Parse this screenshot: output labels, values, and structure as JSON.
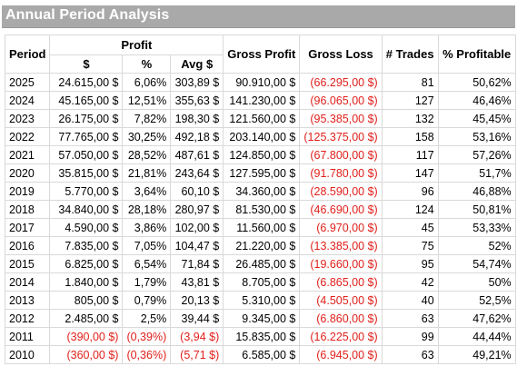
{
  "title": "Annual Period Analysis",
  "headers": {
    "period": "Period",
    "profit_group": "Profit",
    "profit_usd": "$",
    "profit_pct": "%",
    "profit_avg": "Avg $",
    "gross_profit": "Gross Profit",
    "gross_loss": "Gross Loss",
    "trades": "# Trades",
    "profitable": "% Profitable"
  },
  "colors": {
    "negative": "#e0201b",
    "title_bg": "#a9a9a9"
  },
  "rows": [
    {
      "period": "2025",
      "profit": "24.615,00 $",
      "pct": "6,06%",
      "avg": "303,89 $",
      "gross_profit": "90.910,00 $",
      "gross_loss": "(66.295,00 $)",
      "trades": "81",
      "profitable": "50,62%",
      "neg": false
    },
    {
      "period": "2024",
      "profit": "45.165,00 $",
      "pct": "12,51%",
      "avg": "355,63 $",
      "gross_profit": "141.230,00 $",
      "gross_loss": "(96.065,00 $)",
      "trades": "127",
      "profitable": "46,46%",
      "neg": false
    },
    {
      "period": "2023",
      "profit": "26.175,00 $",
      "pct": "7,82%",
      "avg": "198,30 $",
      "gross_profit": "121.560,00 $",
      "gross_loss": "(95.385,00 $)",
      "trades": "132",
      "profitable": "45,45%",
      "neg": false
    },
    {
      "period": "2022",
      "profit": "77.765,00 $",
      "pct": "30,25%",
      "avg": "492,18 $",
      "gross_profit": "203.140,00 $",
      "gross_loss": "(125.375,00 $)",
      "trades": "158",
      "profitable": "53,16%",
      "neg": false
    },
    {
      "period": "2021",
      "profit": "57.050,00 $",
      "pct": "28,52%",
      "avg": "487,61 $",
      "gross_profit": "124.850,00 $",
      "gross_loss": "(67.800,00 $)",
      "trades": "117",
      "profitable": "57,26%",
      "neg": false
    },
    {
      "period": "2020",
      "profit": "35.815,00 $",
      "pct": "21,81%",
      "avg": "243,64 $",
      "gross_profit": "127.595,00 $",
      "gross_loss": "(91.780,00 $)",
      "trades": "147",
      "profitable": "51,7%",
      "neg": false
    },
    {
      "period": "2019",
      "profit": "5.770,00 $",
      "pct": "3,64%",
      "avg": "60,10 $",
      "gross_profit": "34.360,00 $",
      "gross_loss": "(28.590,00 $)",
      "trades": "96",
      "profitable": "46,88%",
      "neg": false
    },
    {
      "period": "2018",
      "profit": "34.840,00 $",
      "pct": "28,18%",
      "avg": "280,97 $",
      "gross_profit": "81.530,00 $",
      "gross_loss": "(46.690,00 $)",
      "trades": "124",
      "profitable": "50,81%",
      "neg": false
    },
    {
      "period": "2017",
      "profit": "4.590,00 $",
      "pct": "3,86%",
      "avg": "102,00 $",
      "gross_profit": "11.560,00 $",
      "gross_loss": "(6.970,00 $)",
      "trades": "45",
      "profitable": "53,33%",
      "neg": false
    },
    {
      "period": "2016",
      "profit": "7.835,00 $",
      "pct": "7,05%",
      "avg": "104,47 $",
      "gross_profit": "21.220,00 $",
      "gross_loss": "(13.385,00 $)",
      "trades": "75",
      "profitable": "52%",
      "neg": false
    },
    {
      "period": "2015",
      "profit": "6.825,00 $",
      "pct": "6,54%",
      "avg": "71,84 $",
      "gross_profit": "26.485,00 $",
      "gross_loss": "(19.660,00 $)",
      "trades": "95",
      "profitable": "54,74%",
      "neg": false
    },
    {
      "period": "2014",
      "profit": "1.840,00 $",
      "pct": "1,79%",
      "avg": "43,81 $",
      "gross_profit": "8.705,00 $",
      "gross_loss": "(6.865,00 $)",
      "trades": "42",
      "profitable": "50%",
      "neg": false
    },
    {
      "period": "2013",
      "profit": "805,00 $",
      "pct": "0,79%",
      "avg": "20,13 $",
      "gross_profit": "5.310,00 $",
      "gross_loss": "(4.505,00 $)",
      "trades": "40",
      "profitable": "52,5%",
      "neg": false
    },
    {
      "period": "2012",
      "profit": "2.485,00 $",
      "pct": "2,5%",
      "avg": "39,44 $",
      "gross_profit": "9.345,00 $",
      "gross_loss": "(6.860,00 $)",
      "trades": "63",
      "profitable": "47,62%",
      "neg": false
    },
    {
      "period": "2011",
      "profit": "(390,00 $)",
      "pct": "(0,39%)",
      "avg": "(3,94 $)",
      "gross_profit": "15.835,00 $",
      "gross_loss": "(16.225,00 $)",
      "trades": "99",
      "profitable": "44,44%",
      "neg": true
    },
    {
      "period": "2010",
      "profit": "(360,00 $)",
      "pct": "(0,36%)",
      "avg": "(5,71 $)",
      "gross_profit": "6.585,00 $",
      "gross_loss": "(6.945,00 $)",
      "trades": "63",
      "profitable": "49,21%",
      "neg": true
    }
  ]
}
